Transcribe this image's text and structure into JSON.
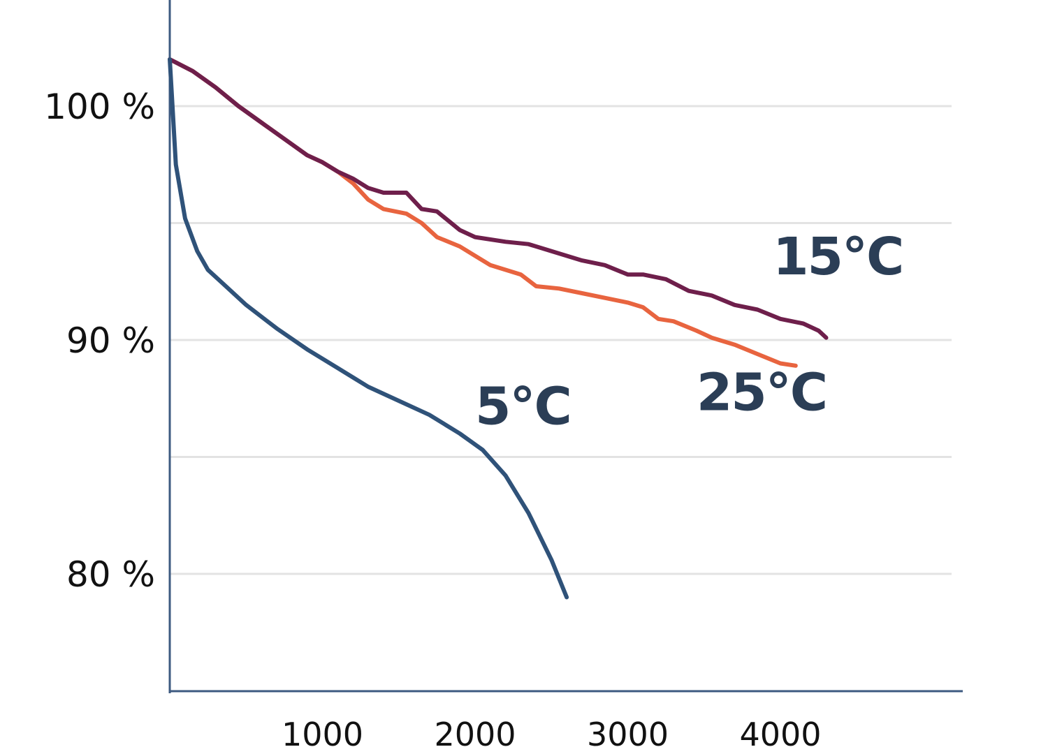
{
  "chart_data": {
    "type": "line",
    "title": "",
    "xlabel": "",
    "ylabel": "",
    "xlim": [
      0,
      4800
    ],
    "ylim": [
      75,
      104
    ],
    "grid": true,
    "legend": "direct labels at line ends",
    "x_ticks": [
      {
        "value": 1000,
        "label": "1000"
      },
      {
        "value": 2000,
        "label": "2000"
      },
      {
        "value": 3000,
        "label": "3000"
      },
      {
        "value": 4000,
        "label": "4000"
      }
    ],
    "y_ticks": [
      {
        "value": 100,
        "label": "100 %"
      },
      {
        "value": 90,
        "label": "90 %"
      },
      {
        "value": 80,
        "label": "80 %"
      }
    ],
    "gridlines_y": [
      80,
      85,
      90,
      95,
      100
    ],
    "series": [
      {
        "name": "15°C",
        "color": "#6e1f4b",
        "label_anchor": [
          3950,
          92.8
        ],
        "points": [
          [
            0,
            102
          ],
          [
            150,
            101.5
          ],
          [
            300,
            100.8
          ],
          [
            450,
            100
          ],
          [
            600,
            99.3
          ],
          [
            750,
            98.6
          ],
          [
            900,
            97.9
          ],
          [
            1000,
            97.6
          ],
          [
            1100,
            97.2
          ],
          [
            1200,
            96.9
          ],
          [
            1300,
            96.5
          ],
          [
            1400,
            96.3
          ],
          [
            1550,
            96.3
          ],
          [
            1650,
            95.6
          ],
          [
            1750,
            95.5
          ],
          [
            1900,
            94.7
          ],
          [
            2000,
            94.4
          ],
          [
            2200,
            94.2
          ],
          [
            2350,
            94.1
          ],
          [
            2500,
            93.8
          ],
          [
            2700,
            93.4
          ],
          [
            2850,
            93.2
          ],
          [
            3000,
            92.8
          ],
          [
            3100,
            92.8
          ],
          [
            3250,
            92.6
          ],
          [
            3400,
            92.1
          ],
          [
            3550,
            91.9
          ],
          [
            3700,
            91.5
          ],
          [
            3850,
            91.3
          ],
          [
            4000,
            90.9
          ],
          [
            4150,
            90.7
          ],
          [
            4250,
            90.4
          ],
          [
            4300,
            90.1
          ]
        ]
      },
      {
        "name": "25°C",
        "color": "#e8643f",
        "label_anchor": [
          3450,
          87.0
        ],
        "points": [
          [
            0,
            102
          ],
          [
            150,
            101.5
          ],
          [
            300,
            100.8
          ],
          [
            450,
            100
          ],
          [
            600,
            99.3
          ],
          [
            750,
            98.6
          ],
          [
            900,
            97.9
          ],
          [
            1000,
            97.6
          ],
          [
            1100,
            97.2
          ],
          [
            1200,
            96.7
          ],
          [
            1300,
            96.0
          ],
          [
            1400,
            95.6
          ],
          [
            1550,
            95.4
          ],
          [
            1650,
            95.0
          ],
          [
            1750,
            94.4
          ],
          [
            1900,
            94.0
          ],
          [
            2000,
            93.6
          ],
          [
            2100,
            93.2
          ],
          [
            2200,
            93.0
          ],
          [
            2300,
            92.8
          ],
          [
            2400,
            92.3
          ],
          [
            2550,
            92.2
          ],
          [
            2700,
            92.0
          ],
          [
            2850,
            91.8
          ],
          [
            3000,
            91.6
          ],
          [
            3100,
            91.4
          ],
          [
            3200,
            90.9
          ],
          [
            3300,
            90.8
          ],
          [
            3450,
            90.4
          ],
          [
            3550,
            90.1
          ],
          [
            3700,
            89.8
          ],
          [
            3850,
            89.4
          ],
          [
            4000,
            89.0
          ],
          [
            4100,
            88.9
          ]
        ]
      },
      {
        "name": "5°C",
        "color": "#2f5279",
        "label_anchor": [
          2000,
          86.4
        ],
        "points": [
          [
            0,
            102
          ],
          [
            40,
            97.5
          ],
          [
            100,
            95.2
          ],
          [
            180,
            93.8
          ],
          [
            250,
            93.0
          ],
          [
            350,
            92.4
          ],
          [
            500,
            91.5
          ],
          [
            700,
            90.5
          ],
          [
            900,
            89.6
          ],
          [
            1100,
            88.8
          ],
          [
            1300,
            88.0
          ],
          [
            1500,
            87.4
          ],
          [
            1700,
            86.8
          ],
          [
            1900,
            86.0
          ],
          [
            2050,
            85.3
          ],
          [
            2200,
            84.2
          ],
          [
            2350,
            82.6
          ],
          [
            2500,
            80.6
          ],
          [
            2600,
            79
          ]
        ]
      }
    ]
  }
}
